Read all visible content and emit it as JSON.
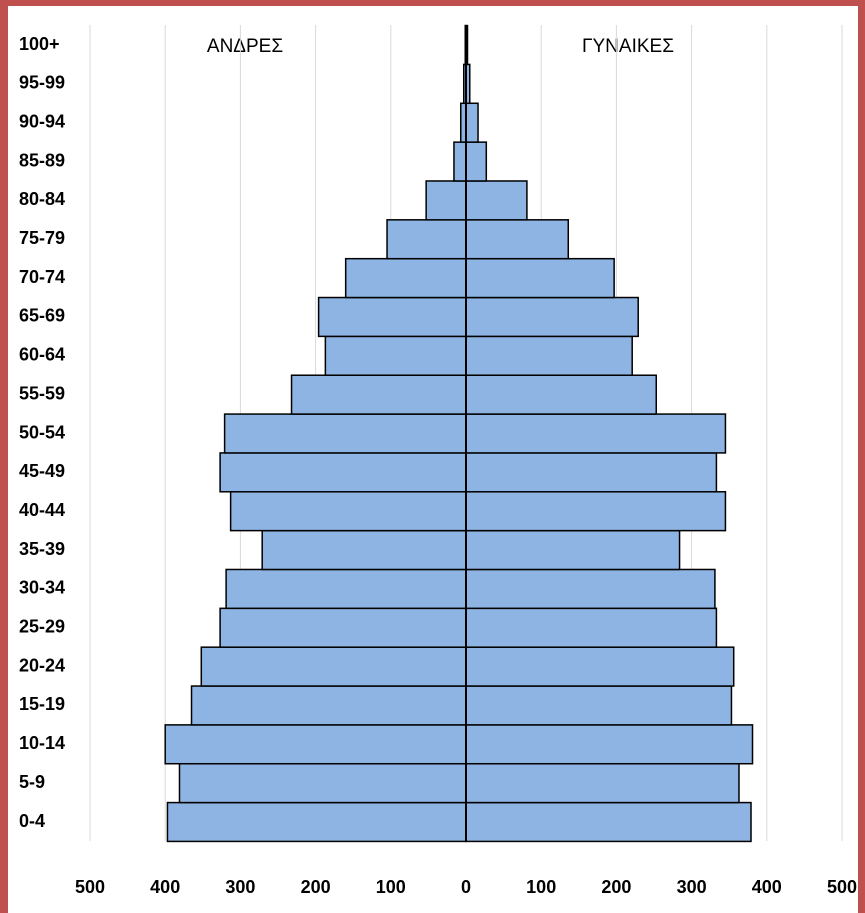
{
  "chart_data": {
    "type": "pyramid",
    "categories": [
      "0-4",
      "5-9",
      "10-14",
      "15-19",
      "20-24",
      "25-29",
      "30-34",
      "35-39",
      "40-44",
      "45-49",
      "50-54",
      "55-59",
      "60-64",
      "65-69",
      "70-74",
      "75-79",
      "80-84",
      "85-89",
      "90-94",
      "95-99",
      "100+"
    ],
    "series": [
      {
        "name": "ΑΝΔΡΕΣ",
        "color": "#8db4e2",
        "values": [
          -397,
          -381,
          -400,
          -365,
          -352,
          -327,
          -319,
          -271,
          -313,
          -327,
          -321,
          -232,
          -187,
          -196,
          -160,
          -105,
          -53,
          -16,
          -7,
          -3,
          -1
        ]
      },
      {
        "name": "ΓΥΝΑΙΚΕΣ",
        "color": "#8db4e2",
        "values": [
          379,
          363,
          381,
          353,
          356,
          333,
          331,
          284,
          345,
          333,
          345,
          253,
          221,
          229,
          197,
          136,
          81,
          27,
          16,
          5,
          2
        ]
      }
    ],
    "xlim": [
      -500,
      500
    ],
    "xticks": [
      {
        "value": -500,
        "label": "500"
      },
      {
        "value": -400,
        "label": "400"
      },
      {
        "value": -300,
        "label": "300"
      },
      {
        "value": -200,
        "label": "200"
      },
      {
        "value": -100,
        "label": "100"
      },
      0,
      100,
      200,
      300,
      400,
      500
    ],
    "grid": true
  }
}
